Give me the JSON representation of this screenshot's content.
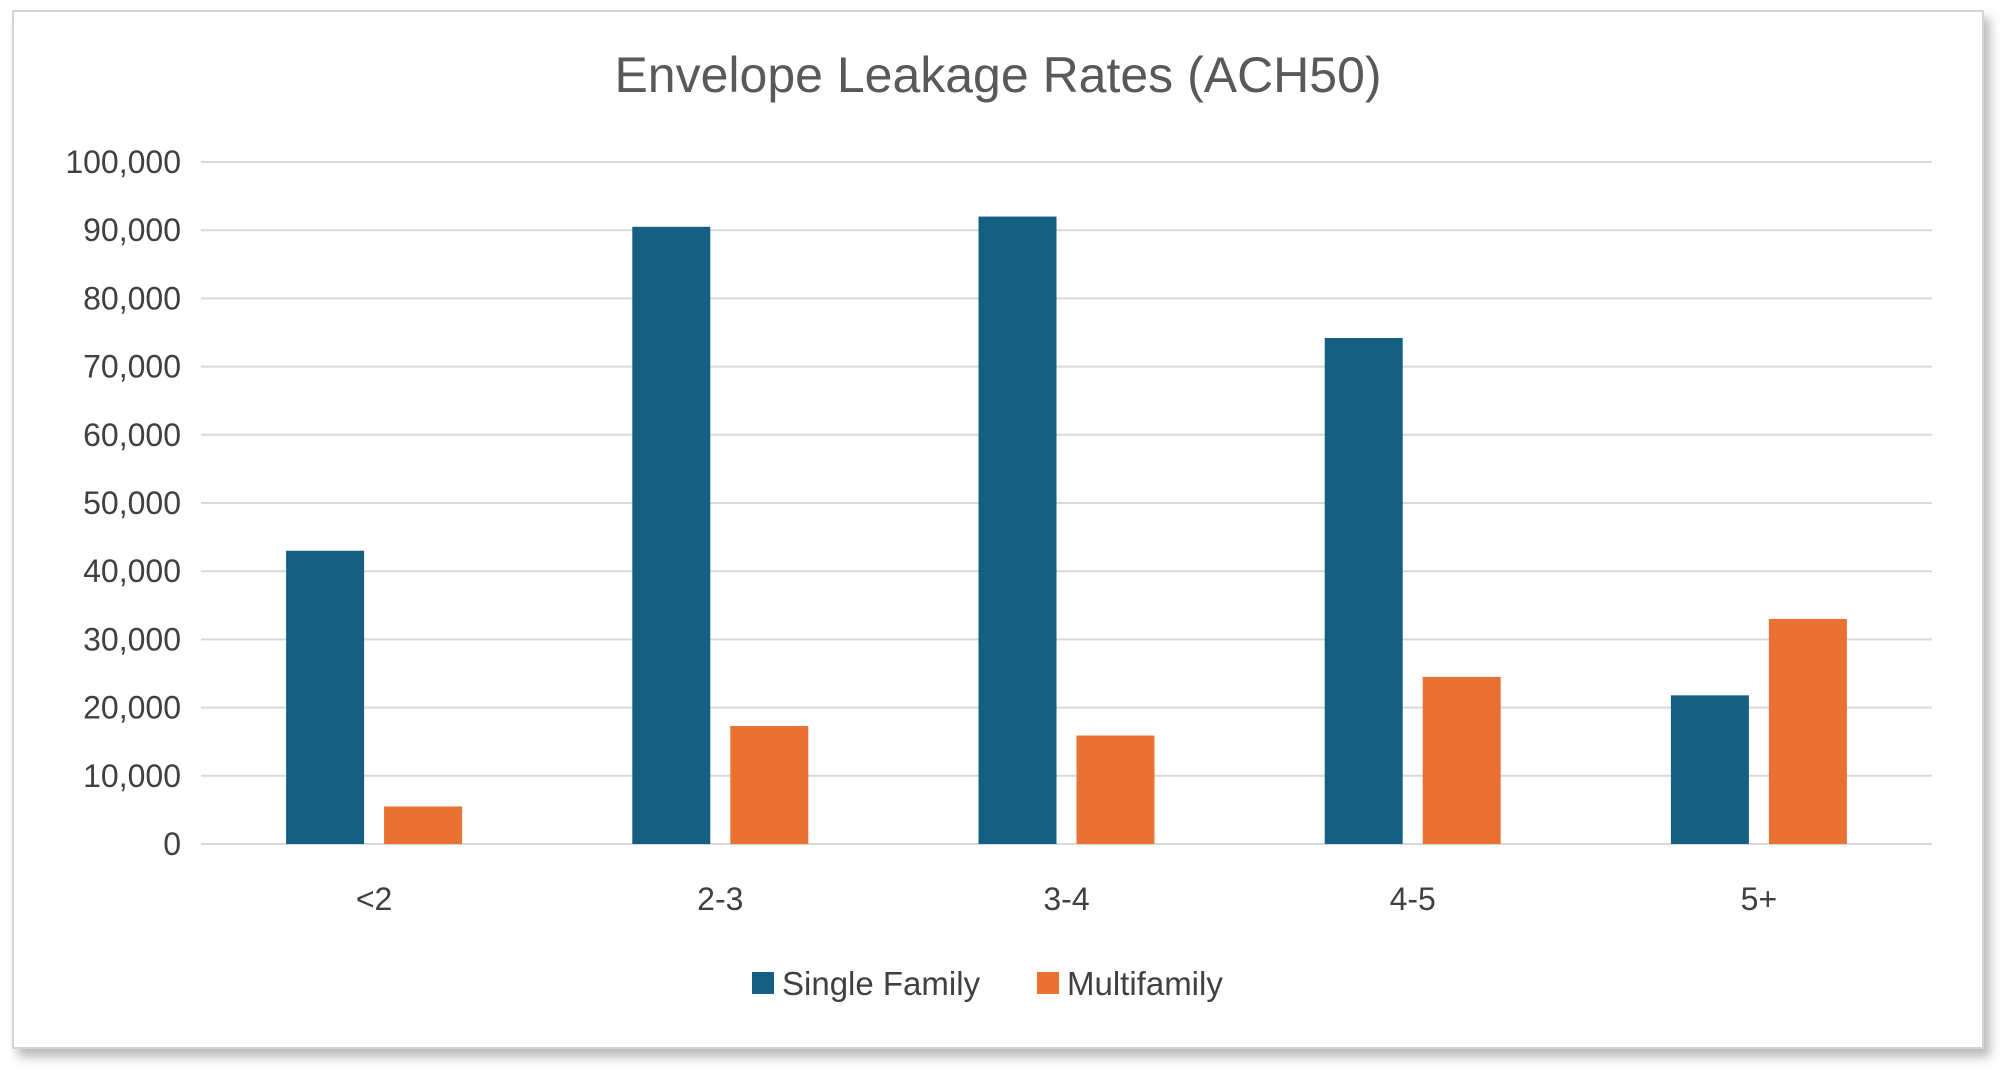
{
  "chart_data": {
    "type": "bar",
    "title": "Envelope Leakage Rates (ACH50)",
    "xlabel": "",
    "ylabel": "",
    "categories": [
      "<2",
      "2-3",
      "3-4",
      "4-5",
      "5+"
    ],
    "series": [
      {
        "name": "Single Family",
        "color": "#155F83",
        "values": [
          43000,
          90500,
          92000,
          74200,
          21800
        ]
      },
      {
        "name": "Multifamily",
        "color": "#E97132",
        "values": [
          5500,
          17300,
          15900,
          24500,
          33000
        ]
      }
    ],
    "ylim": [
      0,
      100000
    ],
    "yticks": [
      0,
      10000,
      20000,
      30000,
      40000,
      50000,
      60000,
      70000,
      80000,
      90000,
      100000
    ],
    "ytick_labels": [
      "0",
      "10,000",
      "20,000",
      "30,000",
      "40,000",
      "50,000",
      "60,000",
      "70,000",
      "80,000",
      "90,000",
      "100,000"
    ],
    "grid": true,
    "legend_position": "bottom"
  }
}
